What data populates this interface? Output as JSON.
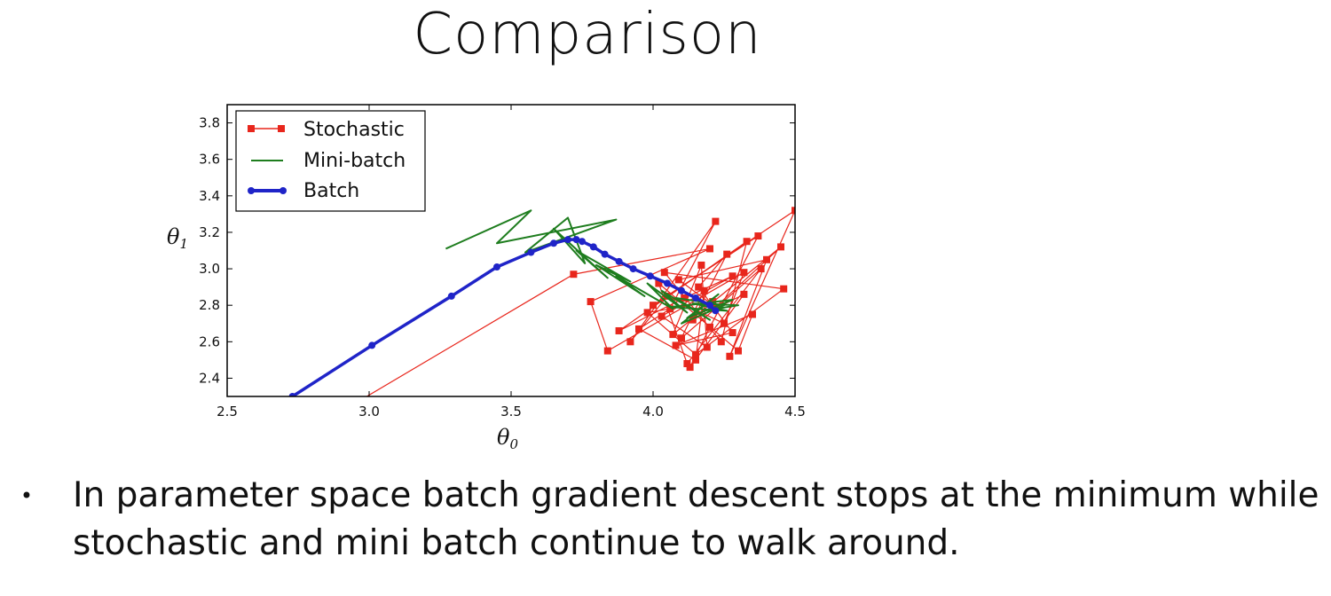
{
  "slide": {
    "title": "Comparison",
    "bullets": [
      "In parameter space batch gradient descent stops at the minimum while stochastic and mini batch continue to walk around."
    ]
  },
  "chart_data": {
    "type": "line",
    "title": "",
    "xlabel": "θ",
    "xlabel_sub": "0",
    "ylabel": "θ",
    "ylabel_sub": "1",
    "xlim": [
      2.5,
      4.5
    ],
    "ylim": [
      2.3,
      3.9
    ],
    "xticks": [
      "2.5",
      "3.0",
      "3.5",
      "4.0",
      "4.5"
    ],
    "yticks": [
      "2.4",
      "2.6",
      "2.8",
      "3.0",
      "3.2",
      "3.4",
      "3.6",
      "3.8"
    ],
    "grid": false,
    "legend_position": "top-left",
    "series": [
      {
        "name": "Stochastic",
        "color": "#e8261c",
        "marker": "square",
        "x": [
          2.72,
          3.72,
          4.2,
          3.78,
          3.84,
          4.32,
          4.25,
          4.05,
          3.92,
          4.22,
          4.06,
          3.95,
          4.15,
          4.18,
          4.1,
          4.38,
          4.12,
          4.02,
          4.3,
          4.35,
          4.08,
          4.28,
          4.16,
          4.26,
          4.14,
          4.32,
          4.13,
          4.2,
          4.37,
          4.0,
          4.5,
          4.27,
          4.4,
          4.09,
          4.22,
          4.45,
          4.07,
          4.17,
          4.19,
          4.03,
          4.28,
          4.11,
          3.88,
          4.33,
          4.24,
          4.04,
          4.46,
          4.15,
          3.98,
          4.21
        ],
        "y": [
          2.05,
          2.97,
          3.11,
          2.82,
          2.55,
          2.98,
          2.7,
          2.85,
          2.6,
          3.26,
          2.78,
          2.67,
          2.5,
          2.88,
          2.62,
          3.0,
          2.48,
          2.92,
          2.55,
          2.75,
          2.58,
          2.65,
          2.9,
          3.08,
          2.72,
          2.86,
          2.46,
          2.68,
          3.18,
          2.8,
          3.32,
          2.52,
          3.05,
          2.94,
          2.79,
          3.12,
          2.64,
          3.02,
          2.57,
          2.74,
          2.96,
          2.84,
          2.66,
          3.15,
          2.6,
          2.98,
          2.89,
          2.53,
          2.76,
          2.82
        ]
      },
      {
        "name": "Mini-batch",
        "color": "#1e7d1e",
        "marker": "none",
        "x": [
          3.27,
          3.57,
          3.45,
          3.87,
          3.55,
          3.7,
          3.76,
          3.65,
          3.84,
          3.73,
          3.92,
          3.8,
          3.97,
          3.87,
          4.07,
          3.98,
          4.12,
          4.03,
          4.2,
          4.08,
          4.25,
          4.1,
          4.23,
          4.12,
          4.28,
          4.06,
          4.26,
          4.14,
          4.3,
          4.18
        ],
        "y": [
          3.11,
          3.32,
          3.14,
          3.27,
          3.09,
          3.28,
          3.03,
          3.22,
          2.95,
          3.1,
          2.93,
          3.02,
          2.85,
          2.96,
          2.78,
          2.92,
          2.76,
          2.88,
          2.72,
          2.84,
          2.8,
          2.7,
          2.86,
          2.73,
          2.83,
          2.79,
          2.77,
          2.81,
          2.8,
          2.77
        ]
      },
      {
        "name": "Batch",
        "color": "#1f24c8",
        "marker": "circle",
        "x": [
          2.73,
          3.01,
          3.29,
          3.45,
          3.57,
          3.65,
          3.7,
          3.73,
          3.75,
          3.79,
          3.83,
          3.88,
          3.93,
          3.99,
          4.05,
          4.1,
          4.15,
          4.2,
          4.22
        ],
        "y": [
          2.3,
          2.58,
          2.85,
          3.01,
          3.09,
          3.14,
          3.16,
          3.16,
          3.15,
          3.12,
          3.08,
          3.04,
          3.0,
          2.96,
          2.92,
          2.88,
          2.84,
          2.8,
          2.77
        ]
      }
    ]
  }
}
